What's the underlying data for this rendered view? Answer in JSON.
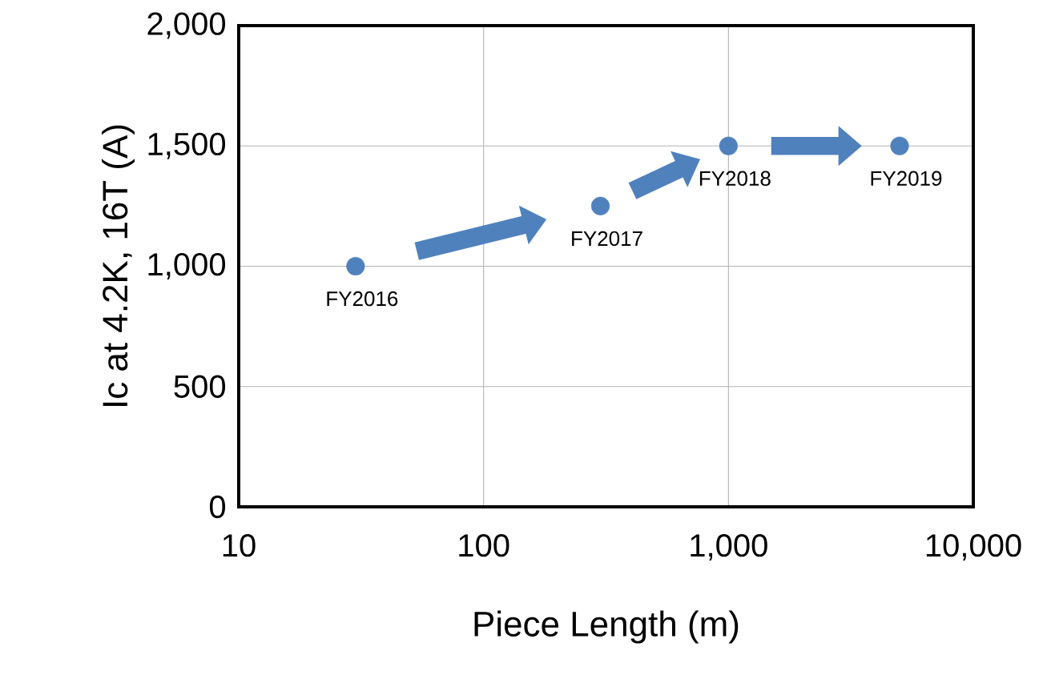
{
  "chart_data": {
    "type": "scatter",
    "xlabel": "Piece Length (m)",
    "ylabel": "Ic at 4.2K, 16T (A)",
    "x": [
      30,
      300,
      1000,
      5000
    ],
    "values": [
      1000,
      1250,
      1500,
      1500
    ],
    "color": "#4f81bd",
    "xlim": [
      10,
      10000
    ],
    "ylim": [
      0,
      2000
    ],
    "xticks": [
      10,
      100,
      {
        "value": 1000,
        "label": "1,000"
      },
      {
        "value": 10000,
        "label": "10,000"
      }
    ],
    "yticks": [
      0,
      500,
      {
        "value": 1000,
        "label": "1,000"
      },
      {
        "value": 1500,
        "label": "1,500"
      },
      {
        "value": 2000,
        "label": "2,000"
      }
    ],
    "log": "x",
    "grid": true,
    "marker": "circle",
    "annotations": [
      {
        "text": "FY2016",
        "x": 30,
        "y": 1000
      },
      {
        "text": "FY2017",
        "x": 300,
        "y": 1250
      },
      {
        "text": "FY2018",
        "x": 1000,
        "y": 1500
      },
      {
        "text": "FY2019",
        "x": 5000,
        "y": 1500
      }
    ]
  }
}
